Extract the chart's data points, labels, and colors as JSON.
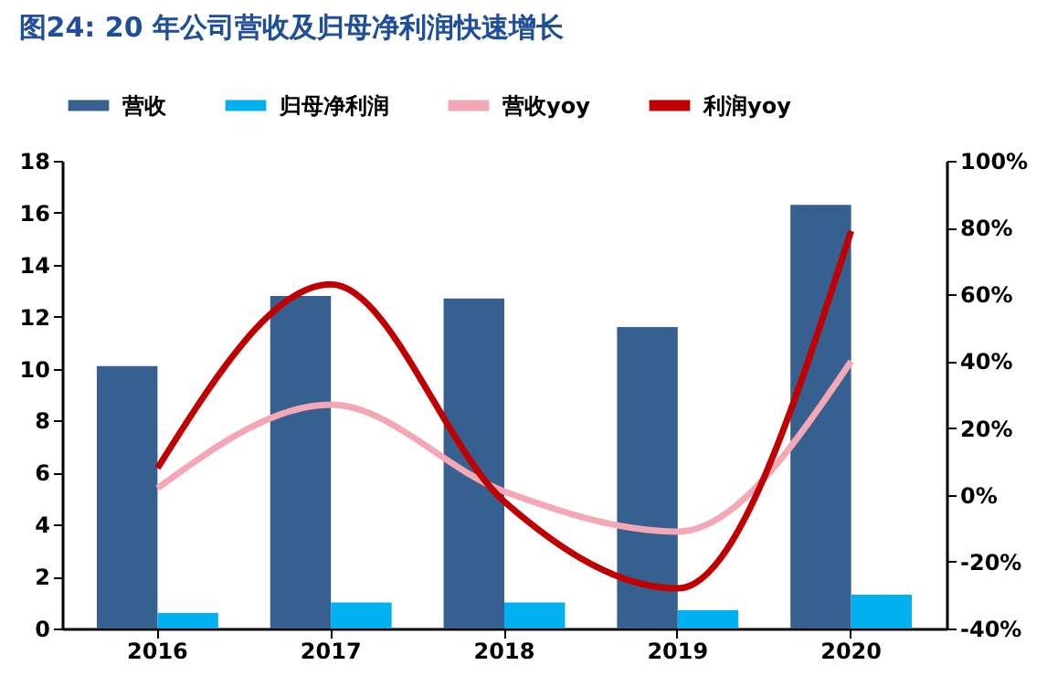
{
  "chart_data": {
    "type": "bar",
    "title": "图24: 20 年公司营收及归母净利润快速增长",
    "categories": [
      "2016",
      "2017",
      "2018",
      "2019",
      "2020"
    ],
    "series": [
      {
        "name": "营收",
        "color": "#36608f",
        "values": [
          10.1,
          12.8,
          12.7,
          11.6,
          16.3
        ]
      },
      {
        "name": "归母净利润",
        "color": "#00b0f0",
        "values": [
          0.6,
          1.0,
          1.0,
          0.7,
          1.3
        ]
      },
      {
        "name": "营收yoy",
        "type": "line",
        "axis": "y2",
        "color": "#f4a7b5",
        "values": [
          2,
          27,
          1,
          -11,
          40
        ]
      },
      {
        "name": "利润yoy",
        "type": "line",
        "axis": "y2",
        "color": "#c00000",
        "values": [
          8,
          63,
          -2,
          -28,
          79
        ]
      }
    ],
    "ylim": [
      0,
      18
    ],
    "yticks": [
      0,
      2,
      4,
      6,
      8,
      10,
      12,
      14,
      16,
      18
    ],
    "y2lim": [
      -40,
      100
    ],
    "y2ticks": [
      {
        "value": -40,
        "label": "-40%"
      },
      {
        "value": -20,
        "label": "-20%"
      },
      {
        "value": 0,
        "label": "0%"
      },
      {
        "value": 20,
        "label": "20%"
      },
      {
        "value": 40,
        "label": "40%"
      },
      {
        "value": 60,
        "label": "60%"
      },
      {
        "value": 80,
        "label": "80%"
      },
      {
        "value": 100,
        "label": "100%"
      }
    ],
    "legend": "top",
    "grid": false
  }
}
